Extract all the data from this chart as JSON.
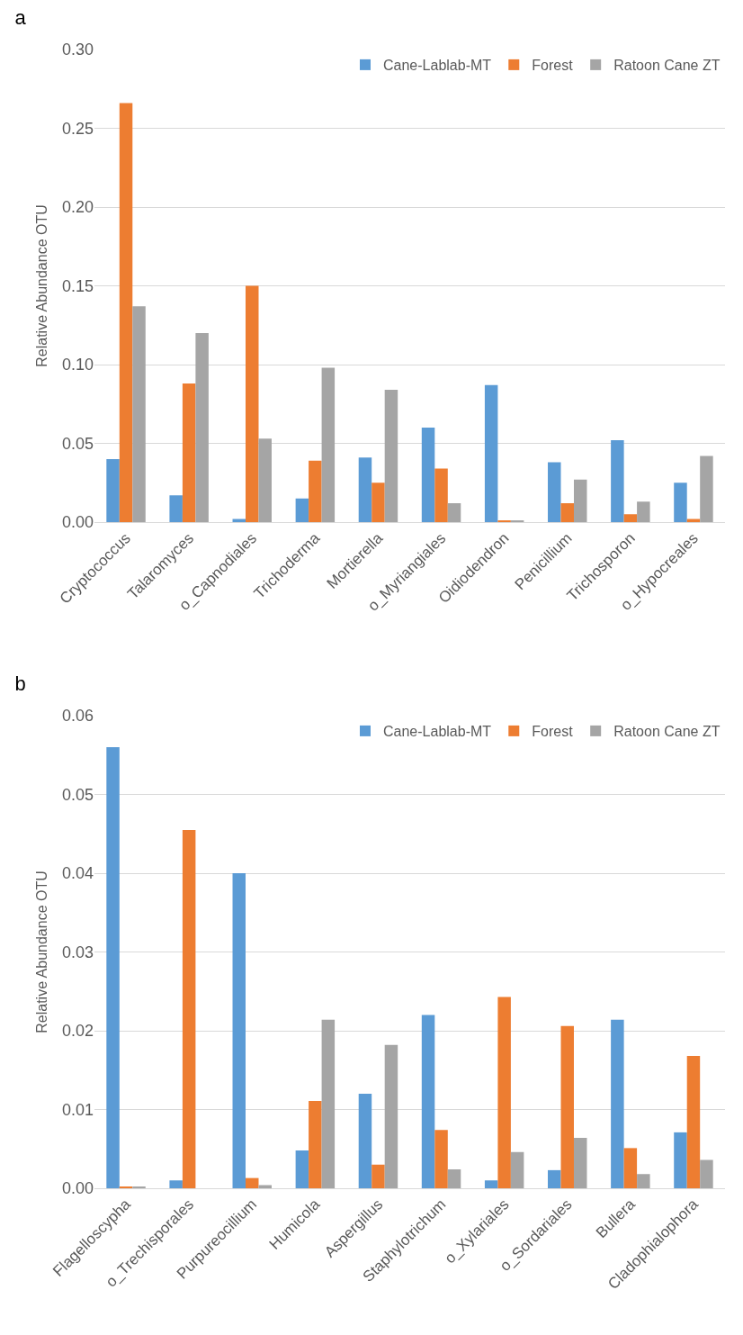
{
  "chart_data": [
    {
      "type": "bar",
      "title": "a",
      "ylabel": "Relative Abundance OTU",
      "categories": [
        "Cryptococcus",
        "Talaromyces",
        "o_Capnodiales",
        "Trichoderma",
        "Mortierella",
        "o_Myriangiales",
        "Oidiodendron",
        "Penicillium",
        "Trichosporon",
        "o_Hypocreales"
      ],
      "series": [
        {
          "name": "Cane-Lablab-MT",
          "color": "#5b9bd5",
          "values": [
            0.04,
            0.017,
            0.002,
            0.015,
            0.041,
            0.06,
            0.087,
            0.038,
            0.052,
            0.025
          ]
        },
        {
          "name": "Forest",
          "color": "#ed7d31",
          "values": [
            0.266,
            0.088,
            0.15,
            0.039,
            0.025,
            0.034,
            0.001,
            0.012,
            0.005,
            0.002
          ]
        },
        {
          "name": "Ratoon Cane ZT",
          "color": "#a5a5a5",
          "values": [
            0.137,
            0.12,
            0.053,
            0.098,
            0.084,
            0.012,
            0.001,
            0.027,
            0.013,
            0.042
          ]
        }
      ],
      "ylim": [
        0,
        0.3
      ],
      "yticks": [
        {
          "value": 0,
          "label": "0.00"
        },
        {
          "value": 0.05,
          "label": "0.05"
        },
        {
          "value": 0.1,
          "label": "0.10"
        },
        {
          "value": 0.15,
          "label": "0.15"
        },
        {
          "value": 0.2,
          "label": "0.20"
        },
        {
          "value": 0.25,
          "label": "0.25"
        },
        {
          "value": 0.3,
          "label": "0.30"
        }
      ],
      "grid": "y",
      "legend": "top right"
    },
    {
      "type": "bar",
      "title": "b",
      "ylabel": "Relative Abundance OTU",
      "categories": [
        "Flagelloscypha",
        "o_Trechisporales",
        "Purpureocillium",
        "Humicola",
        "Aspergillus",
        "Staphylotrichum",
        "o_Xylariales",
        "o_Sordariales",
        "Bullera",
        "Cladophialophora"
      ],
      "series": [
        {
          "name": "Cane-Lablab-MT",
          "color": "#5b9bd5",
          "values": [
            0.056,
            0.001,
            0.04,
            0.0048,
            0.012,
            0.022,
            0.001,
            0.0023,
            0.0214,
            0.0071
          ]
        },
        {
          "name": "Forest",
          "color": "#ed7d31",
          "values": [
            0.0002,
            0.0455,
            0.0013,
            0.0111,
            0.003,
            0.0074,
            0.0243,
            0.0206,
            0.0051,
            0.0168
          ]
        },
        {
          "name": "Ratoon Cane ZT",
          "color": "#a5a5a5",
          "values": [
            0.0002,
            null,
            0.0004,
            0.0214,
            0.0182,
            0.0024,
            0.0046,
            0.0064,
            0.0018,
            0.0036
          ]
        }
      ],
      "ylim": [
        0,
        0.06
      ],
      "yticks": [
        {
          "value": 0,
          "label": "0.00"
        },
        {
          "value": 0.01,
          "label": "0.01"
        },
        {
          "value": 0.02,
          "label": "0.02"
        },
        {
          "value": 0.03,
          "label": "0.03"
        },
        {
          "value": 0.04,
          "label": "0.04"
        },
        {
          "value": 0.05,
          "label": "0.05"
        },
        {
          "value": 0.06,
          "label": "0.06"
        }
      ],
      "grid": "y",
      "legend": "top right"
    }
  ]
}
